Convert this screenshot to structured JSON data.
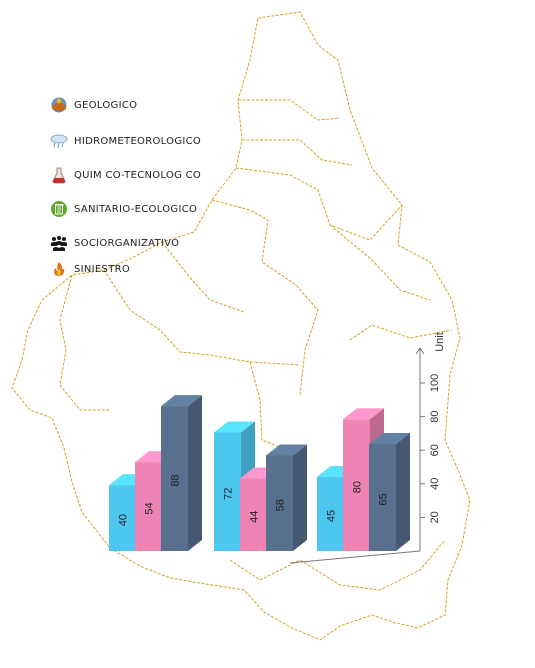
{
  "legend": {
    "items": [
      {
        "label": "GEOLOGICO",
        "icon": "volcano-icon"
      },
      {
        "label": "HIDROMETEOROLOGICO",
        "icon": "storm-cloud-icon"
      },
      {
        "label": "QUIM CO-TECNOLOG CO",
        "icon": "flask-icon"
      },
      {
        "label": "SANITARIO-ECOLOGICO",
        "icon": "trash-bin-icon"
      },
      {
        "label": "SOCIORGANIZATIVO",
        "icon": "crowd-icon"
      },
      {
        "label": "SINIESTRO",
        "icon": "fire-icon"
      }
    ]
  },
  "chart_data": {
    "type": "bar",
    "ylabel": "Unit",
    "yticks": [
      20,
      40,
      60,
      80,
      100
    ],
    "ylim": [
      0,
      110
    ],
    "groups": [
      {
        "values": [
          40,
          54,
          88
        ]
      },
      {
        "values": [
          72,
          44,
          58
        ]
      },
      {
        "values": [
          45,
          80,
          65
        ]
      }
    ],
    "colors": [
      "#4ec7f0",
      "#ee84b3",
      "#56708e"
    ]
  },
  "colors": {
    "map_outline": "#d8a020"
  }
}
